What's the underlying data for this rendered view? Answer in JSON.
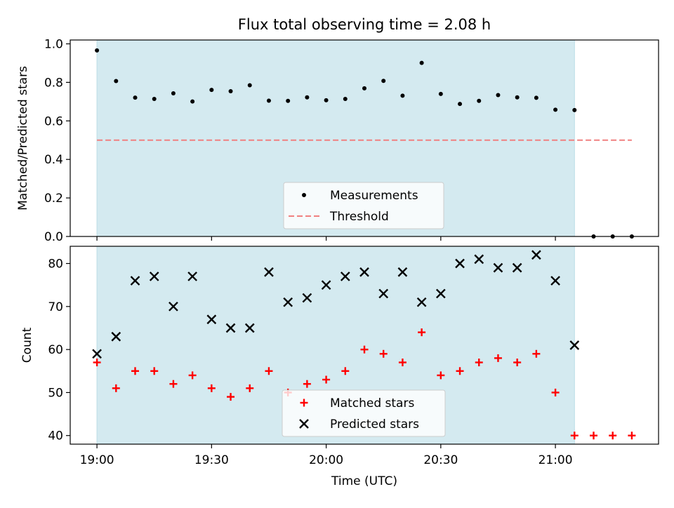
{
  "title": "Flux total observing time = 2.08 h",
  "xlabel": "Time (UTC)",
  "x_tick_labels": [
    "19:00",
    "19:30",
    "20:00",
    "20:30",
    "21:00"
  ],
  "x_tick_minutes": [
    0,
    30,
    60,
    90,
    120
  ],
  "xlim_minutes": [
    -7,
    147
  ],
  "observing_window_minutes": [
    0,
    125
  ],
  "colors": {
    "shade": "#d4eaf0",
    "shade_edge": "#bcdde6",
    "measurement": "#000000",
    "threshold": "#f08080",
    "matched": "#ff0000",
    "predicted": "#000000"
  },
  "chart_data": [
    {
      "type": "scatter",
      "ylabel": "Matched/Predicted stars",
      "ylim": [
        0,
        1.02
      ],
      "yticks": [
        0.0,
        0.2,
        0.4,
        0.6,
        0.8,
        1.0
      ],
      "ytick_labels": [
        "0.0",
        "0.2",
        "0.4",
        "0.6",
        "0.8",
        "1.0"
      ],
      "legend": {
        "placement": "lower-center",
        "items": [
          "Measurements",
          "Threshold"
        ]
      },
      "series": [
        {
          "name": "Measurements",
          "x": [
            0,
            5,
            10,
            15,
            20,
            25,
            30,
            35,
            40,
            45,
            50,
            55,
            60,
            65,
            70,
            75,
            80,
            85,
            90,
            95,
            100,
            105,
            110,
            115,
            120,
            125,
            130,
            135,
            140
          ],
          "values": [
            0.966,
            0.807,
            0.721,
            0.714,
            0.743,
            0.701,
            0.761,
            0.754,
            0.785,
            0.705,
            0.704,
            0.722,
            0.707,
            0.714,
            0.769,
            0.808,
            0.731,
            0.901,
            0.74,
            0.688,
            0.704,
            0.734,
            0.722,
            0.72,
            0.658,
            0.656,
            0,
            0,
            0
          ]
        },
        {
          "name": "Threshold",
          "x": [
            0,
            140
          ],
          "values": [
            0.5,
            0.5
          ]
        }
      ]
    },
    {
      "type": "scatter",
      "ylabel": "Count",
      "ylim": [
        38,
        84
      ],
      "yticks": [
        40,
        50,
        60,
        70,
        80
      ],
      "ytick_labels": [
        "40",
        "50",
        "60",
        "70",
        "80"
      ],
      "legend": {
        "placement": "lower-center",
        "items": [
          "Matched stars",
          "Predicted stars"
        ]
      },
      "series": [
        {
          "name": "Matched stars",
          "x": [
            0,
            5,
            10,
            15,
            20,
            25,
            30,
            35,
            40,
            45,
            50,
            55,
            60,
            65,
            70,
            75,
            80,
            85,
            90,
            95,
            100,
            105,
            110,
            115,
            120,
            125,
            130,
            135,
            140
          ],
          "values": [
            57,
            51,
            55,
            55,
            52,
            54,
            51,
            49,
            51,
            55,
            50,
            52,
            53,
            55,
            60,
            59,
            57,
            64,
            54,
            55,
            57,
            58,
            57,
            59,
            50,
            40,
            40,
            40,
            40
          ]
        },
        {
          "name": "Predicted stars",
          "x": [
            0,
            5,
            10,
            15,
            20,
            25,
            30,
            35,
            40,
            45,
            50,
            55,
            60,
            65,
            70,
            75,
            80,
            85,
            90,
            95,
            100,
            105,
            110,
            115,
            120,
            125
          ],
          "values": [
            59,
            63,
            76,
            77,
            70,
            77,
            67,
            65,
            65,
            78,
            71,
            72,
            75,
            77,
            78,
            73,
            78,
            71,
            73,
            80,
            81,
            79,
            79,
            82,
            76,
            61
          ]
        }
      ]
    }
  ]
}
